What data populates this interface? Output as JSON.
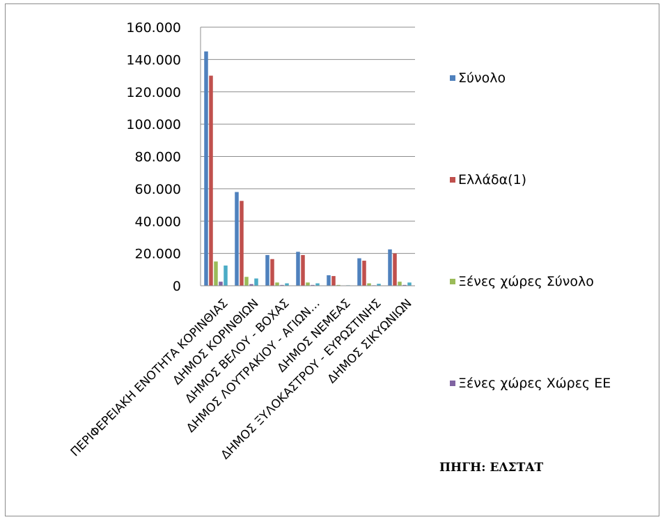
{
  "chart_data": {
    "type": "bar",
    "title": "",
    "xlabel": "",
    "ylabel": "",
    "ylim": [
      0,
      160000
    ],
    "y_ticks": [
      0,
      20000,
      40000,
      60000,
      80000,
      100000,
      120000,
      140000,
      160000
    ],
    "y_tick_labels": [
      "0",
      "20.000",
      "40.000",
      "60.000",
      "80.000",
      "100.000",
      "120.000",
      "140.000",
      "160.000"
    ],
    "grid": true,
    "legend_position": "right",
    "categories": [
      "ΠΕΡΙΦΕΡΕΙΑΚΗ ΕΝΟΤΗΤΑ ΚΟΡΙΝΘΙΑΣ",
      "ΔΗΜΟΣ ΚΟΡΙΝΘΙΩΝ",
      "ΔΗΜΟΣ ΒΕΛΟΥ - ΒΟΧΑΣ",
      "ΔΗΜΟΣ ΛΟΥΤΡΑΚΙΟΥ - ΑΓΙΩΝ…",
      "ΔΗΜΟΣ ΝΕΜΕΑΣ",
      "ΔΗΜΟΣ ΞΥΛΟΚΑΣΤΡΟΥ - ΕΥΡΩΣΤΙΝΗΣ",
      "ΔΗΜΟΣ ΣΙΚΥΩΝΙΩΝ"
    ],
    "series": [
      {
        "name": "Σύνολο",
        "color": "#4f81bd",
        "values": [
          145000,
          58000,
          19000,
          21000,
          6500,
          17000,
          22500
        ]
      },
      {
        "name": "Ελλάδα(1)",
        "color": "#c0504d",
        "values": [
          130000,
          52500,
          16500,
          19000,
          6000,
          15500,
          20000
        ]
      },
      {
        "name": "Ξένες χώρες Σύνολο",
        "color": "#9bbb59",
        "values": [
          15000,
          5500,
          2000,
          2000,
          500,
          1500,
          2500
        ]
      },
      {
        "name": "Ξένες χώρες Χώρες ΕΕ",
        "color": "#8064a2",
        "values": [
          2500,
          1000,
          500,
          500,
          100,
          300,
          500
        ]
      },
      {
        "name": "",
        "color": "#4bacc6",
        "values": [
          12500,
          4500,
          1500,
          1500,
          300,
          1200,
          2000
        ]
      }
    ]
  },
  "source_note": "ΠΗΓΗ: ΕΛΣΤΑΤ"
}
